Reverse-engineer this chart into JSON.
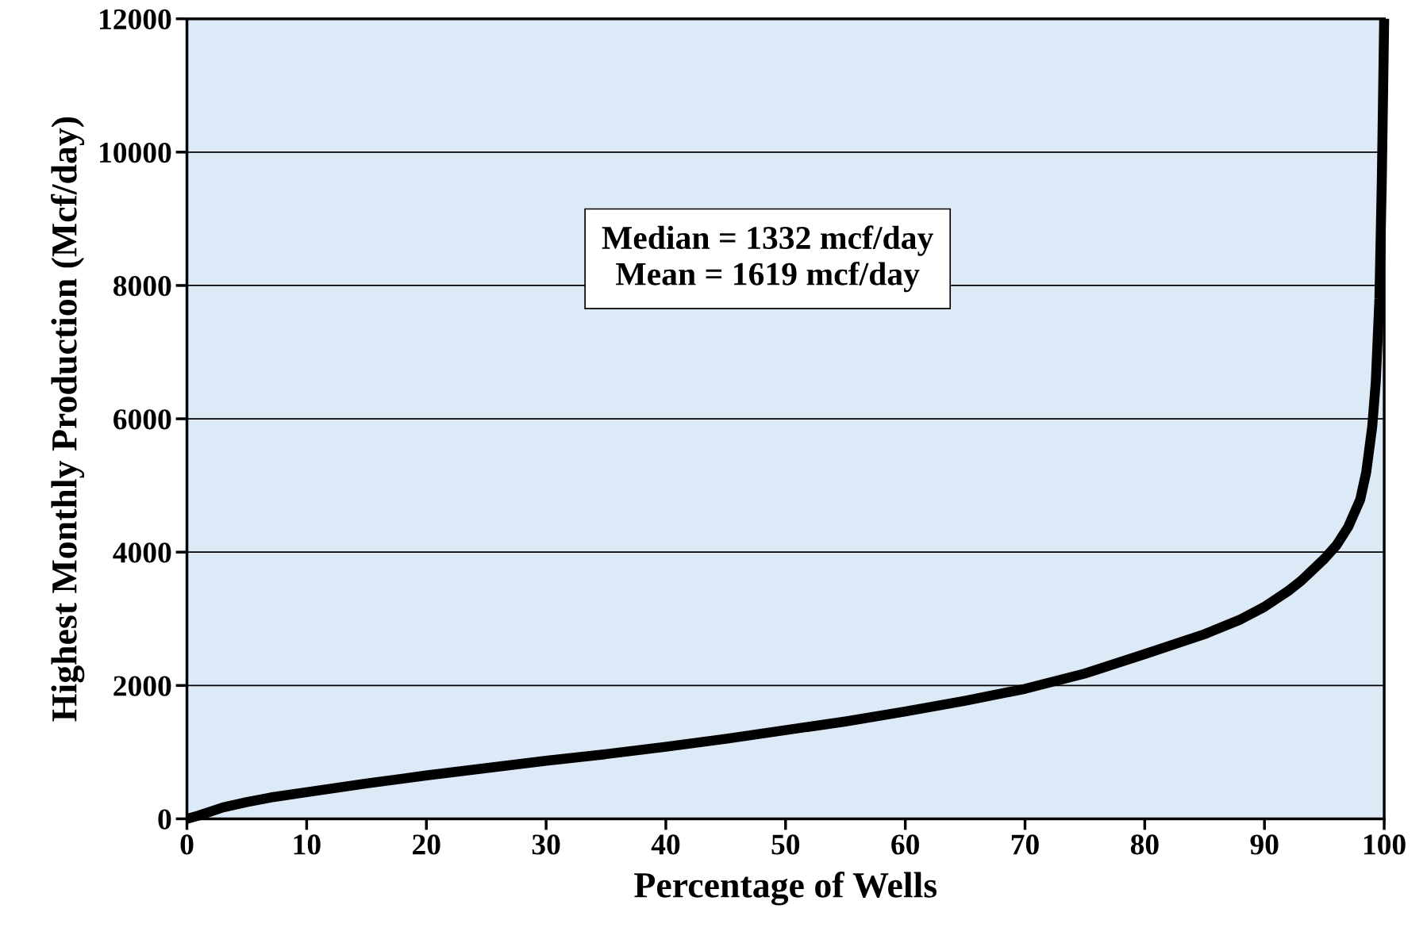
{
  "chart_data": {
    "type": "line",
    "xlabel": "Percentage of Wells",
    "ylabel": "Highest Monthly Production (Mcf/day)",
    "x": [
      0,
      1,
      3,
      5,
      7,
      10,
      15,
      20,
      25,
      30,
      35,
      40,
      45,
      50,
      55,
      60,
      65,
      70,
      75,
      80,
      85,
      88,
      90,
      92,
      93,
      95,
      96,
      97,
      98,
      98.5,
      99,
      99.3,
      99.6,
      99.8,
      100
    ],
    "series": [
      {
        "color": "#000000",
        "values": [
          0,
          50,
          170,
          250,
          320,
          400,
          530,
          650,
          760,
          870,
          970,
          1080,
          1200,
          1330,
          1460,
          1610,
          1770,
          1950,
          2180,
          2470,
          2770,
          2990,
          3180,
          3420,
          3560,
          3900,
          4100,
          4380,
          4790,
          5200,
          5880,
          6560,
          7800,
          9560,
          12000
        ]
      }
    ],
    "xlim": [
      0,
      100
    ],
    "ylim": [
      0,
      12000
    ],
    "xticks": [
      0,
      10,
      20,
      30,
      40,
      50,
      60,
      70,
      80,
      90,
      100
    ],
    "yticks": [
      0,
      2000,
      4000,
      6000,
      8000,
      10000,
      12000
    ],
    "grid": "y",
    "marker": "none",
    "line_style": "solid",
    "annotations": [
      "Median = 1332 mcf/day\nMean = 1619 mcf/day"
    ]
  }
}
